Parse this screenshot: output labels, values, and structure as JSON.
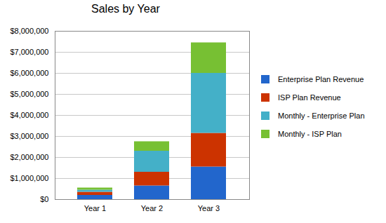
{
  "chart_data": {
    "type": "bar",
    "title": "Sales by Year",
    "categories": [
      "Year 1",
      "Year 2",
      "Year 3"
    ],
    "stacked": true,
    "grid": true,
    "legend": "right",
    "series": [
      {
        "name": "Enterprise Plan Revenue",
        "color": "#2266cc",
        "values": [
          200000,
          650000,
          1550000
        ]
      },
      {
        "name": "ISP Plan Revenue",
        "color": "#cc3300",
        "values": [
          150000,
          650000,
          1600000
        ]
      },
      {
        "name": "Monthly - Enterprise Plan",
        "color": "#44b0c8",
        "values": [
          100000,
          1000000,
          2850000
        ]
      },
      {
        "name": "Monthly - ISP Plan",
        "color": "#77c033",
        "values": [
          100000,
          450000,
          1450000
        ]
      }
    ],
    "ylim": [
      0,
      8000000
    ],
    "yticks": [
      {
        "value": 0,
        "label": "$0"
      },
      {
        "value": 1000000,
        "label": "$1,000,000"
      },
      {
        "value": 2000000,
        "label": "$2,000,000"
      },
      {
        "value": 3000000,
        "label": "$3,000,000"
      },
      {
        "value": 4000000,
        "label": "$4,000,000"
      },
      {
        "value": 5000000,
        "label": "$5,000,000"
      },
      {
        "value": 6000000,
        "label": "$6,000,000"
      },
      {
        "value": 7000000,
        "label": "$7,000,000"
      },
      {
        "value": 8000000,
        "label": "$8,000,000"
      }
    ]
  }
}
